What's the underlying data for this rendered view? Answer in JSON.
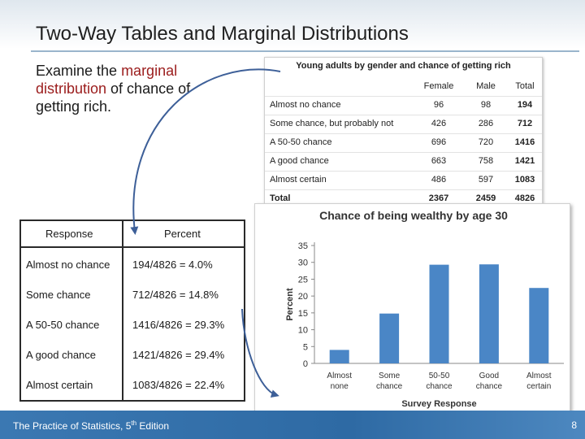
{
  "slide": {
    "title": "Two-Way Tables and Marginal Distributions",
    "intro": {
      "before": "Examine the ",
      "highlight": "marginal distribution",
      "after": " of chance of getting rich."
    },
    "footer": {
      "book": "The Practice of Statistics, 5",
      "sup": "th",
      "edition": " Edition",
      "page": "8"
    }
  },
  "two_way_table": {
    "caption": "Young adults by gender and chance of getting rich",
    "headers": [
      "Female",
      "Male",
      "Total"
    ],
    "rows": [
      {
        "label": "Almost no chance",
        "female": "96",
        "male": "98",
        "total": "194"
      },
      {
        "label": "Some chance, but probably not",
        "female": "426",
        "male": "286",
        "total": "712"
      },
      {
        "label": "A 50-50 chance",
        "female": "696",
        "male": "720",
        "total": "1416"
      },
      {
        "label": "A good chance",
        "female": "663",
        "male": "758",
        "total": "1421"
      },
      {
        "label": "Almost certain",
        "female": "486",
        "male": "597",
        "total": "1083"
      },
      {
        "label": "Total",
        "female": "2367",
        "male": "2459",
        "total": "4826"
      }
    ]
  },
  "percent_table": {
    "headers": [
      "Response",
      "Percent"
    ],
    "rows": [
      {
        "response": "Almost no chance",
        "percent": "194/4826 = 4.0%"
      },
      {
        "response": "Some chance",
        "percent": "712/4826 = 14.8%"
      },
      {
        "response": "A 50-50 chance",
        "percent": "1416/4826 = 29.3%"
      },
      {
        "response": "A good chance",
        "percent": "1421/4826 = 29.4%"
      },
      {
        "response": "Almost certain",
        "percent": "1083/4826 = 22.4%"
      }
    ]
  },
  "colors": {
    "bar": "#4a86c6",
    "highlight_text": "#9b1c1c",
    "footer": "#2e6aa4",
    "arrow": "#3d5f98"
  },
  "chart_data": {
    "type": "bar",
    "title": "Chance of being wealthy by age 30",
    "xlabel": "Survey Response",
    "ylabel": "Percent",
    "categories": [
      "Almost none",
      "Some chance",
      "50-50 chance",
      "Good chance",
      "Almost certain"
    ],
    "category_lines": [
      [
        "Almost",
        "none"
      ],
      [
        "Some",
        "chance"
      ],
      [
        "50-50",
        "chance"
      ],
      [
        "Good",
        "chance"
      ],
      [
        "Almost",
        "certain"
      ]
    ],
    "values": [
      4.0,
      14.8,
      29.3,
      29.4,
      22.4
    ],
    "ylim": [
      0,
      35
    ],
    "yticks": [
      0,
      5,
      10,
      15,
      20,
      25,
      30,
      35
    ],
    "grid": false,
    "legend": "none"
  }
}
